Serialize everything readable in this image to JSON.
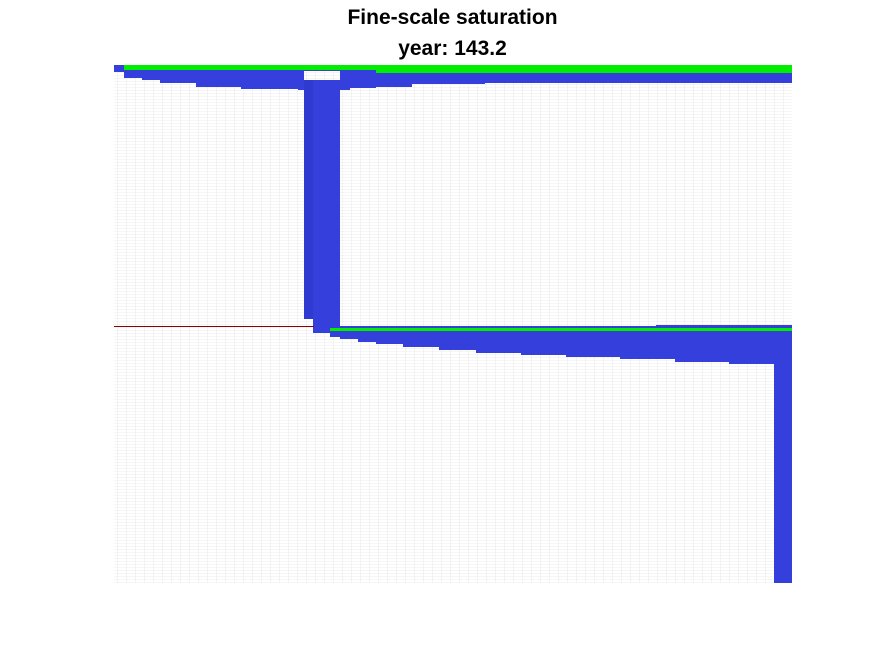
{
  "chart_data": {
    "type": "heatmap",
    "title": "Fine-scale saturation",
    "subtitle": "year: 143.2",
    "xlabel": "",
    "ylabel": "",
    "grid": "cell mesh",
    "legend": "none",
    "colors": {
      "water": "#3540dc",
      "co2": "#00ee00",
      "mesh": "#d9d9d9",
      "fault_line": "#8b0000",
      "background": "#ffffff"
    }
  }
}
